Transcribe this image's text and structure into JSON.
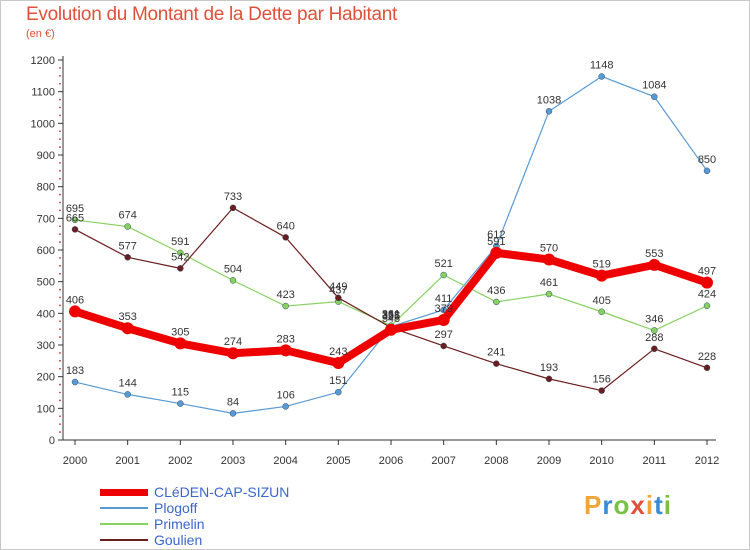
{
  "title": "Evolution du Montant de la Dette par Habitant",
  "subtitle": "(en €)",
  "logo": {
    "letters": [
      "P",
      "r",
      "o",
      "x",
      "i",
      "t",
      "i"
    ],
    "colors": [
      "#f2a43a",
      "#3a8ad8",
      "#7ac043",
      "#e0503a",
      "#f2a43a",
      "#3a8ad8",
      "#7ac043"
    ]
  },
  "chart_data": {
    "type": "line",
    "x": [
      2000,
      2001,
      2002,
      2003,
      2004,
      2005,
      2006,
      2007,
      2008,
      2009,
      2010,
      2011,
      2012
    ],
    "ylim": [
      0,
      1200
    ],
    "yticks": [
      0,
      100,
      200,
      300,
      400,
      500,
      600,
      700,
      800,
      900,
      1000,
      1100,
      1200
    ],
    "grid": false,
    "legend_position": "bottom-left",
    "series": [
      {
        "name": "CLéDEN-CAP-SIZUN",
        "color": "#ee0000",
        "width": 8,
        "values": [
          406,
          353,
          305,
          274,
          283,
          243,
          348,
          379,
          591,
          570,
          519,
          553,
          497
        ],
        "labels": [
          "406",
          "353",
          "305",
          "274",
          "283",
          "243",
          "348",
          "379",
          "591",
          "570",
          "519",
          "553",
          "497"
        ]
      },
      {
        "name": "Plogoff",
        "color": "#5a9ad4",
        "width": 1.2,
        "values": [
          183,
          144,
          115,
          84,
          106,
          151,
          358,
          411,
          612,
          1038,
          1148,
          1084,
          850
        ],
        "labels": [
          "183",
          "144",
          "115",
          "84",
          "106",
          "151",
          "358",
          "411",
          "612",
          "1038",
          "1148",
          "1084",
          "850"
        ]
      },
      {
        "name": "Primelin",
        "color": "#88d060",
        "width": 1.2,
        "values": [
          695,
          674,
          591,
          504,
          423,
          437,
          361,
          521,
          436,
          461,
          405,
          346,
          424
        ],
        "labels": [
          "695",
          "674",
          "591",
          "504",
          "423",
          "437",
          "361",
          "521",
          "436",
          "461",
          "405",
          "346",
          "424"
        ]
      },
      {
        "name": "Goulien",
        "color": "#6b1e1e",
        "width": 1.2,
        "values": [
          665,
          577,
          542,
          733,
          640,
          449,
          355,
          297,
          241,
          193,
          156,
          288,
          228
        ],
        "labels": [
          "665",
          "577",
          "542",
          "733",
          "640",
          "449",
          "355",
          "297",
          "241",
          "193",
          "156",
          "288",
          "228"
        ]
      }
    ]
  }
}
